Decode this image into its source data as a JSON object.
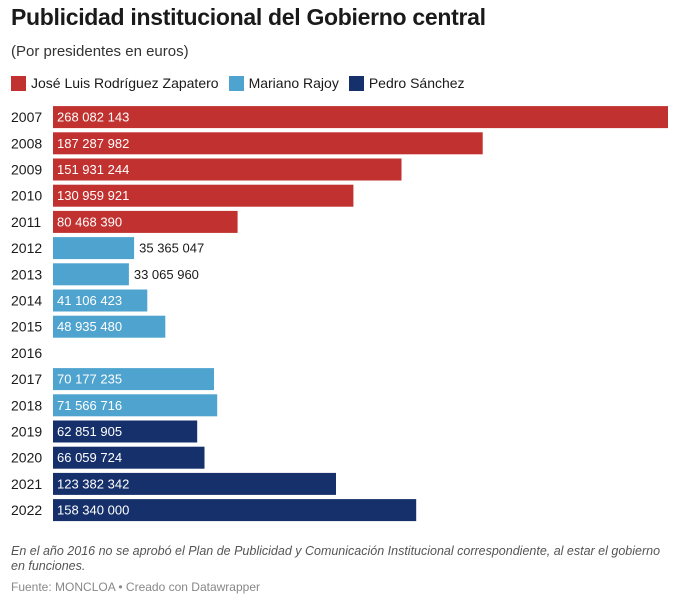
{
  "title": "Publicidad institucional del Gobierno central",
  "subtitle": "(Por presidentes en euros)",
  "note": "En el año 2016 no se aprobó el Plan de Publicidad y Comunicación Institucional correspondiente, al estar el gobierno en funciones.",
  "source": "Fuente: MONCLOA • Creado con Datawrapper",
  "colors": {
    "zapatero": "#c0312f",
    "rajoy": "#4ea3cf",
    "sanchez": "#15306a"
  },
  "legend": [
    {
      "label": "José Luis Rodríguez Zapatero",
      "color": "#c0312f"
    },
    {
      "label": "Mariano Rajoy",
      "color": "#4ea3cf"
    },
    {
      "label": "Pedro Sánchez",
      "color": "#15306a"
    }
  ],
  "chart_data": {
    "type": "bar",
    "orientation": "horizontal",
    "categories": [
      "2007",
      "2008",
      "2009",
      "2010",
      "2011",
      "2012",
      "2013",
      "2014",
      "2015",
      "2016",
      "2017",
      "2018",
      "2019",
      "2020",
      "2021",
      "2022"
    ],
    "values": [
      268082143,
      187287982,
      151931244,
      130959921,
      80468390,
      35365047,
      33065960,
      41106423,
      48935480,
      null,
      70177235,
      71566716,
      62851905,
      66059724,
      123382342,
      158340000
    ],
    "value_labels": [
      "268 082 143",
      "187 287 982",
      "151 931 244",
      "130 959 921",
      "80 468 390",
      "35 365 047",
      "33 065 960",
      "41 106 423",
      "48 935 480",
      "",
      "70 177 235",
      "71 566 716",
      "62 851 905",
      "66 059 724",
      "123 382 342",
      "158 340 000"
    ],
    "series_key": [
      "zapatero",
      "zapatero",
      "zapatero",
      "zapatero",
      "zapatero",
      "rajoy",
      "rajoy",
      "rajoy",
      "rajoy",
      "",
      "rajoy",
      "rajoy",
      "sanchez",
      "sanchez",
      "sanchez",
      "sanchez"
    ],
    "series": [
      {
        "name": "José Luis Rodríguez Zapatero",
        "key": "zapatero"
      },
      {
        "name": "Mariano Rajoy",
        "key": "rajoy"
      },
      {
        "name": "Pedro Sánchez",
        "key": "sanchez"
      }
    ],
    "xlim": [
      0,
      268082143
    ],
    "legend_position": "top-left",
    "grid": false
  }
}
